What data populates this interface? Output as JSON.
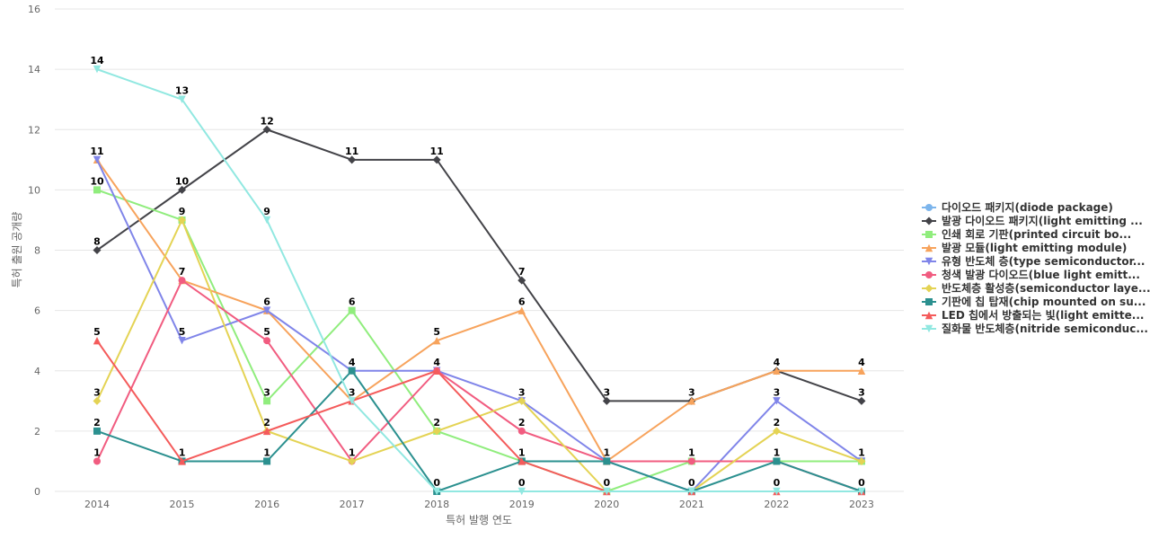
{
  "chart_data": {
    "type": "line",
    "xlabel": "특허 발행 연도",
    "ylabel": "특허 출원 공개량",
    "categories": [
      "2014",
      "2015",
      "2016",
      "2017",
      "2018",
      "2019",
      "2020",
      "2021",
      "2022",
      "2023"
    ],
    "ylim": [
      0,
      16
    ],
    "yticks": [
      0,
      2,
      4,
      6,
      8,
      10,
      12,
      14,
      16
    ],
    "grid": true,
    "legend_position": "right",
    "series": [
      {
        "name": "다이오드 패키지(diode package)",
        "color": "#7cb5ec",
        "marker": "circle",
        "values": [
          null,
          null,
          null,
          null,
          null,
          null,
          null,
          null,
          null,
          null
        ]
      },
      {
        "name": "발광 다이오드 패키지(light emitting ...",
        "color": "#434348",
        "marker": "diamond",
        "values": [
          8,
          10,
          12,
          11,
          11,
          7,
          3,
          3,
          4,
          3
        ]
      },
      {
        "name": "인쇄 회로 기판(printed circuit bo...",
        "color": "#90ed7d",
        "marker": "square",
        "values": [
          10,
          9,
          3,
          6,
          2,
          1,
          0,
          1,
          1,
          1
        ]
      },
      {
        "name": "발광 모듈(light emitting module)",
        "color": "#f7a35c",
        "marker": "triangle",
        "values": [
          11,
          7,
          6,
          3,
          5,
          6,
          1,
          3,
          4,
          4
        ]
      },
      {
        "name": "유형 반도체 층(type semiconductor...",
        "color": "#8085e9",
        "marker": "triangle-down",
        "values": [
          11,
          5,
          6,
          4,
          4,
          3,
          1,
          0,
          3,
          1
        ]
      },
      {
        "name": "청색 발광 다이오드(blue light emitt...",
        "color": "#f15c80",
        "marker": "circle",
        "values": [
          1,
          7,
          5,
          1,
          4,
          2,
          1,
          1,
          1,
          0
        ]
      },
      {
        "name": "반도체층 활성층(semiconductor laye...",
        "color": "#e4d354",
        "marker": "diamond",
        "values": [
          3,
          9,
          2,
          1,
          2,
          3,
          0,
          0,
          2,
          1
        ]
      },
      {
        "name": "기판에 칩 탑재(chip mounted on su...",
        "color": "#2b908f",
        "marker": "square",
        "values": [
          2,
          1,
          1,
          4,
          0,
          1,
          1,
          0,
          1,
          0
        ]
      },
      {
        "name": "LED 칩에서 방출되는 빛(light emitte...",
        "color": "#f45b5b",
        "marker": "triangle",
        "values": [
          5,
          1,
          2,
          3,
          4,
          1,
          0,
          0,
          0,
          0
        ]
      },
      {
        "name": "질화물 반도체층(nitride semiconduc...",
        "color": "#91e8e1",
        "marker": "triangle-down",
        "values": [
          14,
          13,
          9,
          3,
          0,
          0,
          0,
          0,
          0,
          0
        ]
      }
    ],
    "data_labels": [
      {
        "x": "2014",
        "text": "14",
        "series": 9
      },
      {
        "x": "2014",
        "text": "11",
        "series": 3
      },
      {
        "x": "2014",
        "text": "10",
        "series": 2
      },
      {
        "x": "2014",
        "text": "8",
        "series": 1
      },
      {
        "x": "2014",
        "text": "5",
        "series": 8
      },
      {
        "x": "2014",
        "text": "3",
        "series": 6
      },
      {
        "x": "2014",
        "text": "2",
        "series": 7
      },
      {
        "x": "2014",
        "text": "1",
        "series": 5
      },
      {
        "x": "2015",
        "text": "13",
        "series": 9
      },
      {
        "x": "2015",
        "text": "10",
        "series": 1
      },
      {
        "x": "2015",
        "text": "9",
        "series": 2
      },
      {
        "x": "2015",
        "text": "7",
        "series": 5
      },
      {
        "x": "2015",
        "text": "5",
        "series": 4
      },
      {
        "x": "2015",
        "text": "1",
        "series": 7
      },
      {
        "x": "2016",
        "text": "12",
        "series": 1
      },
      {
        "x": "2016",
        "text": "9",
        "series": 9
      },
      {
        "x": "2016",
        "text": "6",
        "series": 4
      },
      {
        "x": "2016",
        "text": "5",
        "series": 5
      },
      {
        "x": "2016",
        "text": "3",
        "series": 2
      },
      {
        "x": "2016",
        "text": "2",
        "series": 6
      },
      {
        "x": "2016",
        "text": "1",
        "series": 7
      },
      {
        "x": "2017",
        "text": "11",
        "series": 1
      },
      {
        "x": "2017",
        "text": "6",
        "series": 2
      },
      {
        "x": "2017",
        "text": "4",
        "series": 7
      },
      {
        "x": "2017",
        "text": "3",
        "series": 3
      },
      {
        "x": "2017",
        "text": "1",
        "series": 6
      },
      {
        "x": "2018",
        "text": "11",
        "series": 1
      },
      {
        "x": "2018",
        "text": "5",
        "series": 3
      },
      {
        "x": "2018",
        "text": "4",
        "series": 8
      },
      {
        "x": "2018",
        "text": "2",
        "series": 2
      },
      {
        "x": "2018",
        "text": "0",
        "series": 7
      },
      {
        "x": "2019",
        "text": "7",
        "series": 1
      },
      {
        "x": "2019",
        "text": "6",
        "series": 3
      },
      {
        "x": "2019",
        "text": "3",
        "series": 4
      },
      {
        "x": "2019",
        "text": "2",
        "series": 5
      },
      {
        "x": "2019",
        "text": "1",
        "series": 7
      },
      {
        "x": "2019",
        "text": "0",
        "series": 9
      },
      {
        "x": "2020",
        "text": "3",
        "series": 1
      },
      {
        "x": "2020",
        "text": "1",
        "series": 7
      },
      {
        "x": "2020",
        "text": "0",
        "series": 8
      },
      {
        "x": "2021",
        "text": "3",
        "series": 1
      },
      {
        "x": "2021",
        "text": "1",
        "series": 5
      },
      {
        "x": "2021",
        "text": "0",
        "series": 7
      },
      {
        "x": "2022",
        "text": "4",
        "series": 1
      },
      {
        "x": "2022",
        "text": "3",
        "series": 4
      },
      {
        "x": "2022",
        "text": "2",
        "series": 6
      },
      {
        "x": "2022",
        "text": "1",
        "series": 7
      },
      {
        "x": "2022",
        "text": "0",
        "series": 8
      },
      {
        "x": "2023",
        "text": "4",
        "series": 3
      },
      {
        "x": "2023",
        "text": "3",
        "series": 1
      },
      {
        "x": "2023",
        "text": "1",
        "series": 2
      },
      {
        "x": "2023",
        "text": "0",
        "series": 7
      }
    ]
  }
}
